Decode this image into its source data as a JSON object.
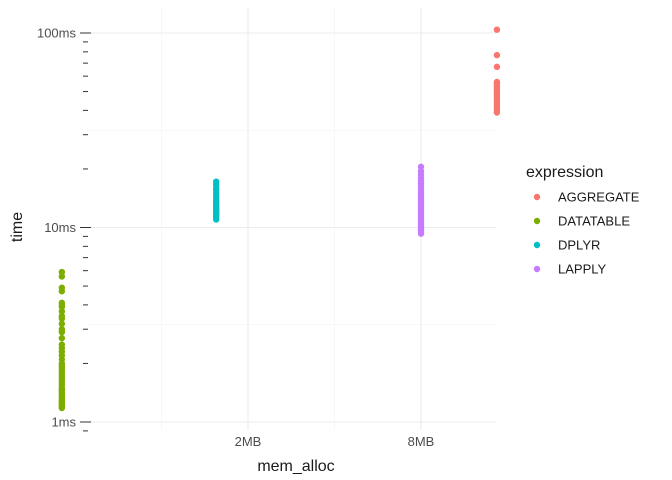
{
  "chart_data": {
    "type": "scatter",
    "xlabel": "mem_alloc",
    "ylabel": "time",
    "x_axis": {
      "scale": "log",
      "tick_labels": [
        {
          "label": "2MB",
          "value": 2
        },
        {
          "label": "8MB",
          "value": 8
        }
      ]
    },
    "y_axis": {
      "scale": "log",
      "unit": "ms",
      "range": [
        0.84,
        125
      ],
      "tick_labels": [
        {
          "label": "1ms",
          "value": 1
        },
        {
          "label": "10ms",
          "value": 10
        },
        {
          "label": "100ms",
          "value": 100
        }
      ]
    },
    "grid": true,
    "legend": {
      "title": "expression",
      "placement": "right"
    },
    "series": [
      {
        "name": "AGGREGATE",
        "color": "#F8766D",
        "x_mb": 14.7,
        "y_ms": [
          104,
          77,
          67,
          56,
          55,
          54,
          53,
          52,
          51,
          50,
          49,
          48,
          47,
          46,
          45,
          44,
          43,
          42,
          41,
          40,
          39
        ]
      },
      {
        "name": "DATATABLE",
        "color": "#7CAE00",
        "x_mb": 0.45,
        "y_ms": [
          5.9,
          5.6,
          4.9,
          4.7,
          4.1,
          4.0,
          3.9,
          3.7,
          3.5,
          3.4,
          3.2,
          3.0,
          2.9,
          2.7,
          2.5,
          2.4,
          2.3,
          2.2,
          2.1,
          2.0,
          1.95,
          1.9,
          1.85,
          1.8,
          1.75,
          1.7,
          1.65,
          1.6,
          1.55,
          1.5,
          1.47,
          1.44,
          1.41,
          1.38,
          1.35,
          1.32,
          1.3,
          1.28,
          1.26,
          1.24,
          1.22,
          1.2,
          1.18
        ]
      },
      {
        "name": "DPLYR",
        "color": "#00BFC4",
        "x_mb": 1.55,
        "y_ms": [
          17.2,
          16.6,
          16.0,
          15.5,
          15.0,
          14.6,
          14.2,
          13.8,
          13.5,
          13.2,
          12.9,
          12.6,
          12.4,
          12.2,
          12.0,
          11.8,
          11.6,
          11.4,
          11.2,
          11.0
        ]
      },
      {
        "name": "LAPPLY",
        "color": "#C77CFF",
        "x_mb": 8.0,
        "y_ms": [
          20.5,
          19.5,
          18.7,
          18.0,
          17.4,
          16.8,
          16.2,
          15.7,
          15.2,
          14.8,
          14.4,
          14.0,
          13.6,
          13.2,
          12.9,
          12.6,
          12.3,
          12.0,
          11.7,
          11.4,
          11.1,
          10.8,
          10.5,
          10.3,
          10.1,
          9.9,
          9.7,
          9.5,
          9.3
        ]
      }
    ]
  }
}
